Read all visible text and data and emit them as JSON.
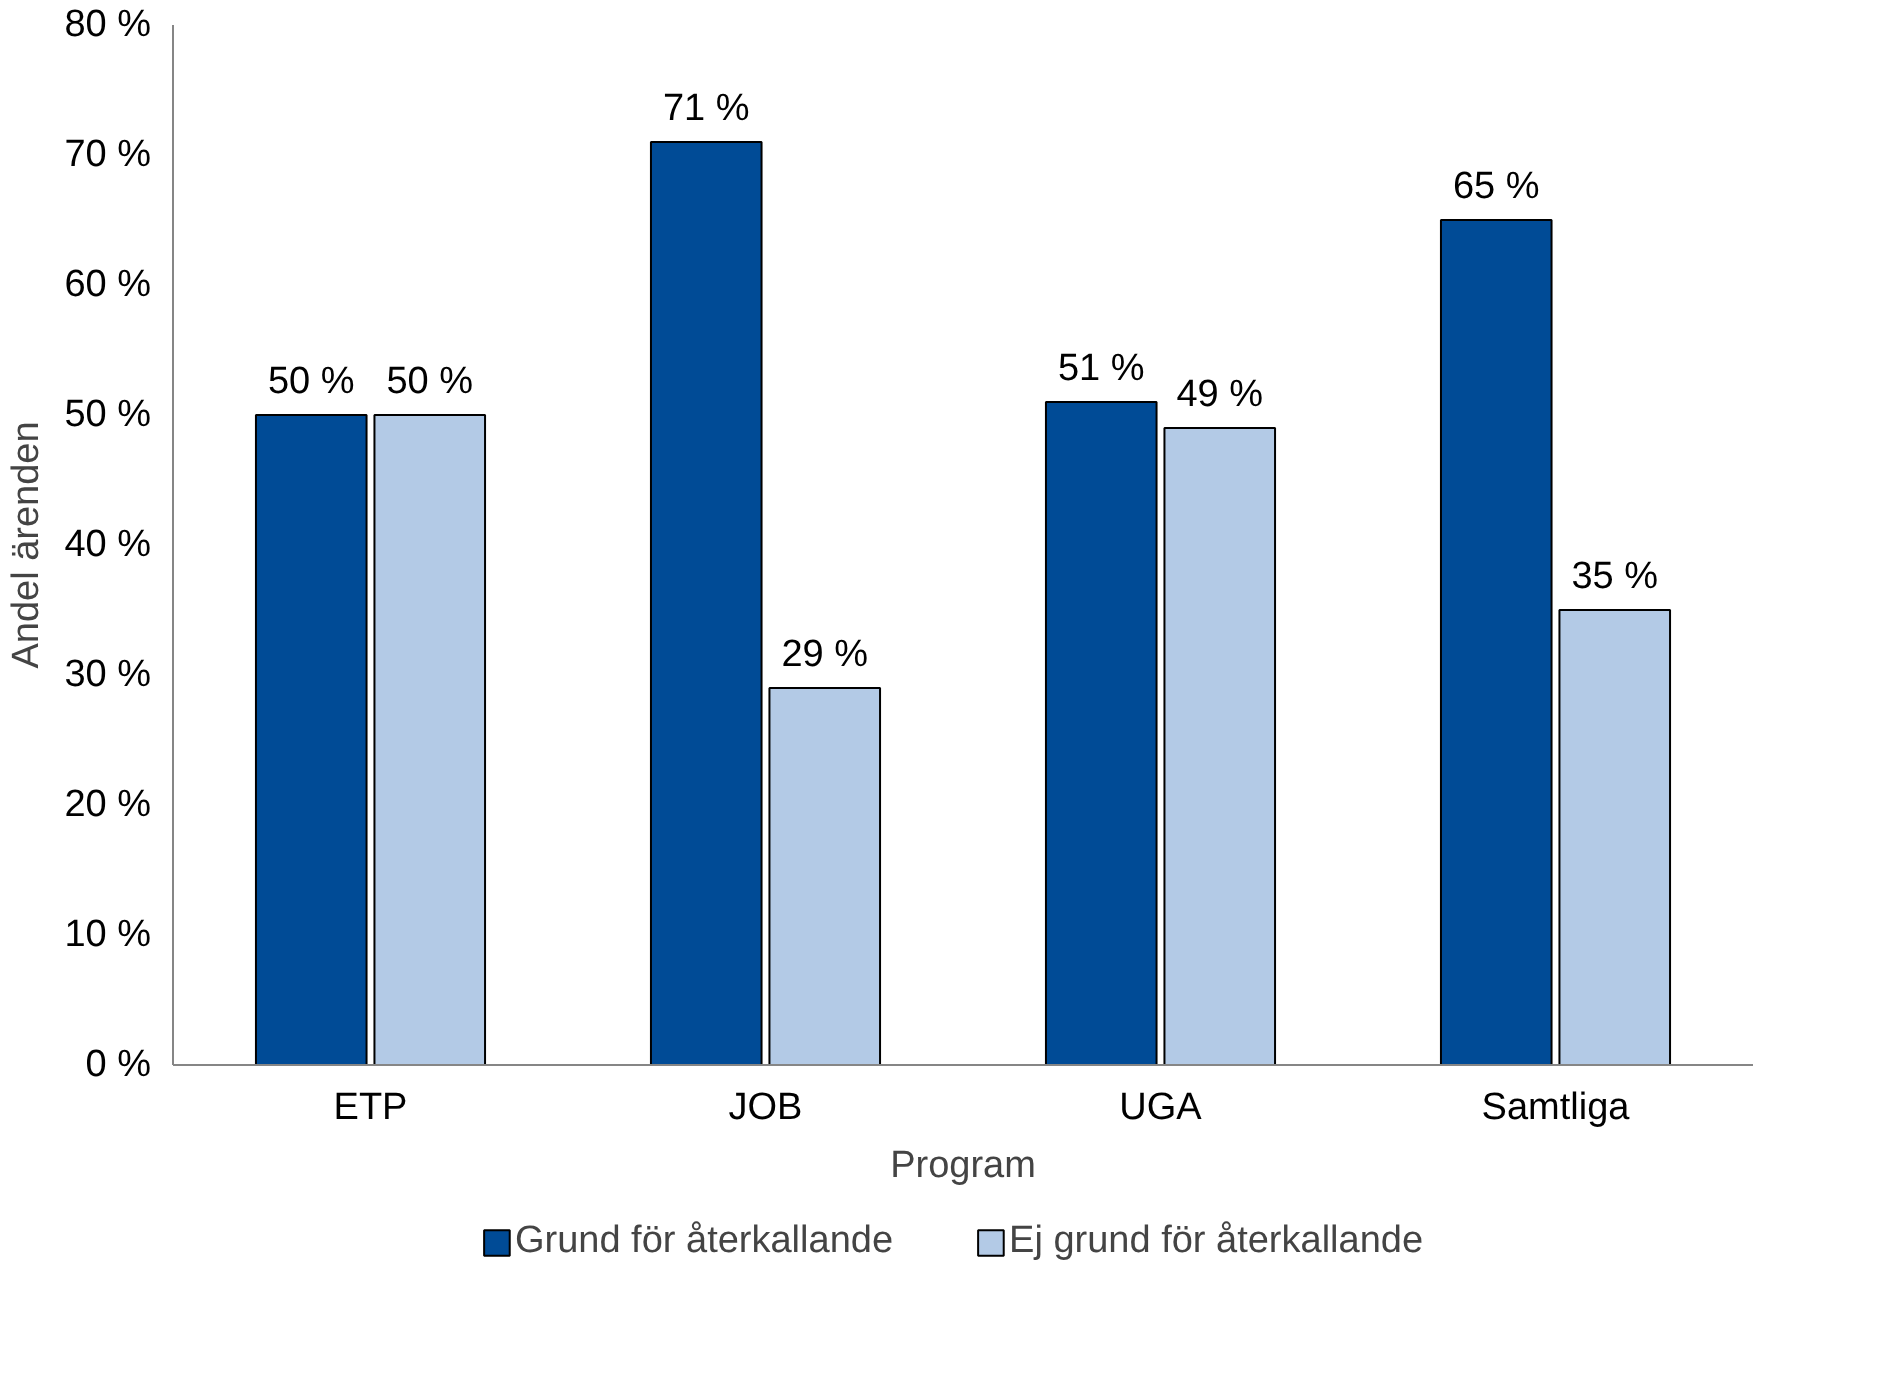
{
  "chart_data": {
    "type": "bar",
    "xlabel": "Program",
    "ylabel": "Andel ärenden",
    "categories": [
      "ETP",
      "JOB",
      "UGA",
      "Samtliga"
    ],
    "series": [
      {
        "name": "Grund för återkallande",
        "color": "#004b96",
        "values": [
          50,
          71,
          51,
          65
        ],
        "value_labels": [
          "50 %",
          "71 %",
          "51 %",
          "65 %"
        ]
      },
      {
        "name": "Ej grund för återkallande",
        "color": "#b3cae6",
        "values": [
          50,
          29,
          49,
          35
        ],
        "value_labels": [
          "50 %",
          "29 %",
          "49 %",
          "35 %"
        ]
      }
    ],
    "ylim": [
      0,
      80
    ],
    "yticks": [
      {
        "value": 0,
        "label": "0 %"
      },
      {
        "value": 10,
        "label": "10 %"
      },
      {
        "value": 20,
        "label": "20 %"
      },
      {
        "value": 30,
        "label": "30 %"
      },
      {
        "value": 40,
        "label": "40 %"
      },
      {
        "value": 50,
        "label": "50 %"
      },
      {
        "value": 60,
        "label": "60 %"
      },
      {
        "value": 70,
        "label": "70 %"
      },
      {
        "value": 80,
        "label": "80 %"
      }
    ],
    "grid": false,
    "legend": "bottom"
  }
}
